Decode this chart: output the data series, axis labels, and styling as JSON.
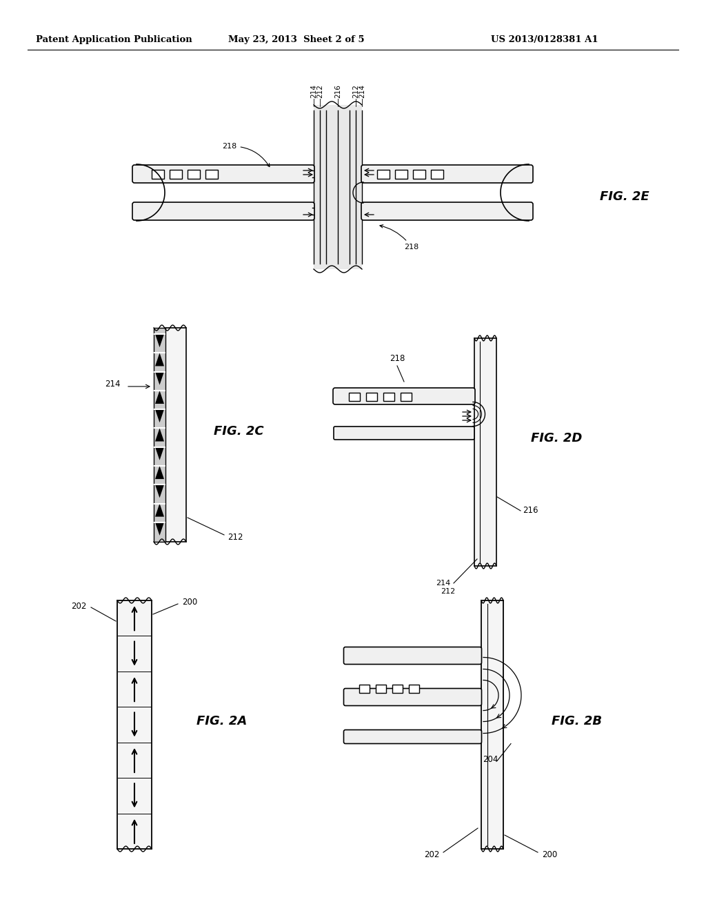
{
  "header_left": "Patent Application Publication",
  "header_mid": "May 23, 2013  Sheet 2 of 5",
  "header_right": "US 2013/0128381 A1",
  "background": "#ffffff"
}
